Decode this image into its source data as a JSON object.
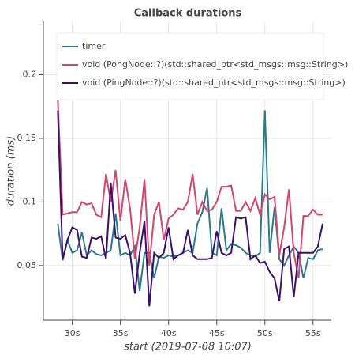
{
  "chart_data": {
    "type": "line",
    "title": "Callback durations",
    "x_label": "start (2019-07-08 10:07)",
    "y_label": "duration (ms)",
    "x": [
      28.5,
      29,
      29.5,
      30,
      30.5,
      31,
      31.5,
      32,
      32.5,
      33,
      33.5,
      34,
      34.5,
      35,
      35.5,
      36,
      36.5,
      37,
      37.5,
      38,
      38.5,
      39,
      39.5,
      40,
      40.5,
      41,
      41.5,
      42,
      42.5,
      43,
      43.5,
      44,
      44.5,
      45,
      45.5,
      46,
      46.5,
      47,
      47.5,
      48,
      48.5,
      49,
      49.5,
      50,
      50.5,
      51,
      51.5,
      52,
      52.5,
      53,
      53.5,
      54,
      54.5,
      55,
      55.5,
      56
    ],
    "series": [
      {
        "name": "timer",
        "color": "#2b7b8c",
        "values": [
          0.083,
          0.054,
          0.07,
          0.06,
          0.062,
          0.076,
          0.058,
          0.062,
          0.059,
          0.058,
          0.06,
          0.062,
          0.091,
          0.058,
          0.06,
          0.058,
          0.065,
          0.03,
          0.06,
          0.06,
          0.04,
          0.057,
          0.056,
          0.058,
          0.057,
          0.058,
          0.06,
          0.062,
          0.06,
          0.083,
          0.092,
          0.111,
          0.06,
          0.058,
          0.095,
          0.062,
          0.067,
          0.066,
          0.064,
          0.06,
          0.058,
          0.057,
          0.06,
          0.172,
          0.06,
          0.096,
          0.055,
          0.05,
          0.058,
          0.065,
          0.06,
          0.04,
          0.056,
          0.055,
          0.062,
          0.063
        ]
      },
      {
        "name": "void (PongNode::?)(std::shared_ptr<std_msgs::msg::String>)",
        "color": "#d6456c",
        "values": [
          0.18,
          0.09,
          0.091,
          0.092,
          0.092,
          0.1,
          0.098,
          0.099,
          0.09,
          0.088,
          0.122,
          0.1,
          0.125,
          0.085,
          0.118,
          0.095,
          0.055,
          0.08,
          0.118,
          0.05,
          0.09,
          0.1,
          0.07,
          0.087,
          0.09,
          0.095,
          0.094,
          0.1,
          0.122,
          0.09,
          0.1,
          0.093,
          0.094,
          0.1,
          0.112,
          0.112,
          0.113,
          0.093,
          0.093,
          0.1,
          0.093,
          0.103,
          0.09,
          0.106,
          0.102,
          0.104,
          0.058,
          0.08,
          0.11,
          0.06,
          0.04,
          0.089,
          0.089,
          0.094,
          0.09,
          0.09
        ]
      },
      {
        "name": "void (PingNode::?)(std::shared_ptr<std_msgs::msg::String>)",
        "color": "#3b0f6f",
        "values": [
          0.172,
          0.055,
          0.07,
          0.08,
          0.078,
          0.057,
          0.056,
          0.072,
          0.071,
          0.073,
          0.055,
          0.115,
          0.072,
          0.071,
          0.074,
          0.06,
          0.028,
          0.06,
          0.085,
          0.018,
          0.06,
          0.056,
          0.06,
          0.08,
          0.055,
          0.058,
          0.06,
          0.078,
          0.058,
          0.055,
          0.055,
          0.055,
          0.056,
          0.077,
          0.06,
          0.058,
          0.06,
          0.088,
          0.087,
          0.088,
          0.055,
          0.058,
          0.052,
          0.053,
          0.045,
          0.04,
          0.022,
          0.063,
          0.065,
          0.025,
          0.06,
          0.06,
          0.06,
          0.06,
          0.065,
          0.083
        ]
      }
    ],
    "xlim": [
      27,
      56.9
    ],
    "xticks": [
      {
        "value": 30,
        "label": "30s"
      },
      {
        "value": 35,
        "label": "35s"
      },
      {
        "value": 40,
        "label": "40s"
      },
      {
        "value": 45,
        "label": "45s"
      },
      {
        "value": 50,
        "label": "50s"
      },
      {
        "value": 55,
        "label": "55s"
      }
    ],
    "ylim": [
      0.007,
      0.242
    ],
    "yticks": [
      0.05,
      0.1,
      0.15,
      0.2
    ],
    "grid": true,
    "legend": "top-left"
  }
}
